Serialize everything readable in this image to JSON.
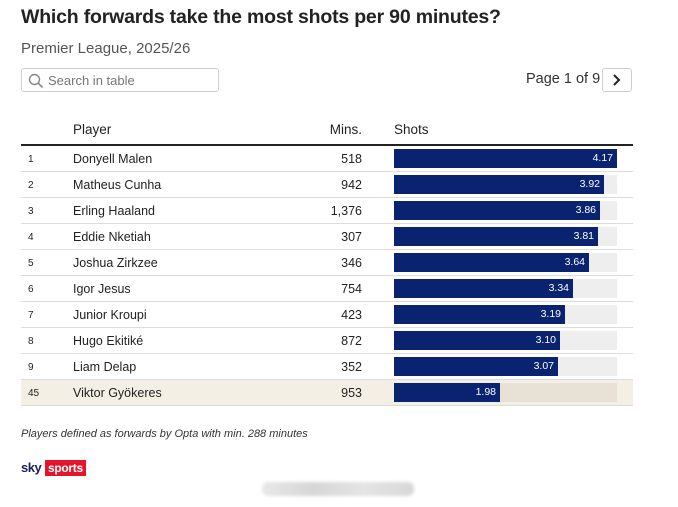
{
  "title": "Which forwards take the most shots per 90 minutes?",
  "subtitle": "Premier League, 2025/26",
  "search": {
    "placeholder": "Search in table",
    "value": ""
  },
  "pager": {
    "text": "Page 1 of 9",
    "next_icon": "chevron-right-icon"
  },
  "columns": {
    "player": "Player",
    "mins": "Mins.",
    "shots": "Shots"
  },
  "colors": {
    "bar": "#0a2371",
    "track": "#eeeeee",
    "highlight_row": "#f4efe4",
    "brand_red": "#e5142a"
  },
  "chart_data": {
    "type": "table",
    "columns": [
      "",
      "Player",
      "Mins.",
      "Shots"
    ],
    "bar_column": "Shots",
    "bar_max": 4.17,
    "rows": [
      {
        "rank": "1",
        "player": "Donyell Malen",
        "mins": "518",
        "shots": 4.17,
        "shots_label": "4.17"
      },
      {
        "rank": "2",
        "player": "Matheus Cunha",
        "mins": "942",
        "shots": 3.92,
        "shots_label": "3.92"
      },
      {
        "rank": "3",
        "player": "Erling Haaland",
        "mins": "1,376",
        "shots": 3.86,
        "shots_label": "3.86"
      },
      {
        "rank": "4",
        "player": "Eddie Nketiah",
        "mins": "307",
        "shots": 3.81,
        "shots_label": "3.81"
      },
      {
        "rank": "5",
        "player": "Joshua Zirkzee",
        "mins": "346",
        "shots": 3.64,
        "shots_label": "3.64"
      },
      {
        "rank": "6",
        "player": "Igor Jesus",
        "mins": "754",
        "shots": 3.34,
        "shots_label": "3.34"
      },
      {
        "rank": "7",
        "player": "Junior Kroupi",
        "mins": "423",
        "shots": 3.19,
        "shots_label": "3.19"
      },
      {
        "rank": "8",
        "player": "Hugo Ekitiké",
        "mins": "872",
        "shots": 3.1,
        "shots_label": "3.10"
      },
      {
        "rank": "9",
        "player": "Liam Delap",
        "mins": "352",
        "shots": 3.07,
        "shots_label": "3.07"
      },
      {
        "rank": "45",
        "player": "Viktor Gyökeres",
        "mins": "953",
        "shots": 1.98,
        "shots_label": "1.98",
        "highlighted": true
      }
    ]
  },
  "footnote": "Players defined as forwards by Opta with min. 288 minutes",
  "logo": {
    "sky": "sky",
    "sports": "sports"
  }
}
